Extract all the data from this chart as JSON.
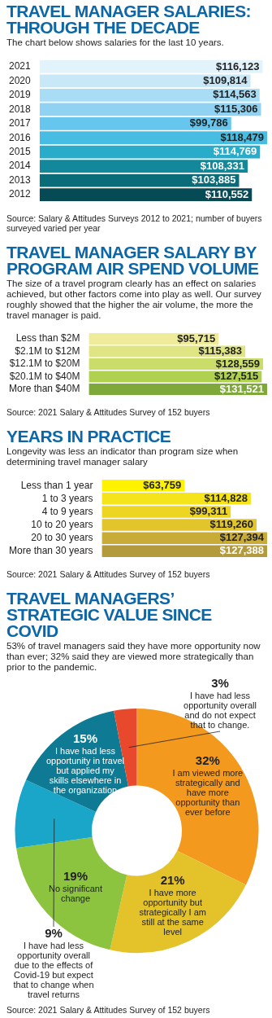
{
  "chart_data": [
    {
      "type": "bar",
      "orientation": "horizontal",
      "tick_labels": "y",
      "title": "TRAVEL MANAGER SALARIES: THROUGH THE DECADE",
      "subtitle": "The chart below shows salaries for the last 10 years.",
      "categories": [
        "2021",
        "2020",
        "2019",
        "2018",
        "2017",
        "2016",
        "2015",
        "2014",
        "2013",
        "2012"
      ],
      "values": [
        116123,
        109814,
        114563,
        115306,
        99786,
        118479,
        114769,
        108331,
        103885,
        110552
      ],
      "value_labels": [
        "$116,123",
        "$109,814",
        "$114,563",
        "$115,306",
        "$99,786",
        "$118,479",
        "$114,769",
        "$108,331",
        "$103,885",
        "$110,552"
      ],
      "colors": [
        "#e2f3fc",
        "#c8e8f8",
        "#a9dcf5",
        "#8fd2f2",
        "#66c6ee",
        "#48bde4",
        "#29acc9",
        "#13889a",
        "#0a6c78",
        "#054a55"
      ],
      "annotations": [
        "Source: Salary & Attitudes Surveys 2012 to 2021; number of buyers surveyed varied per year"
      ]
    },
    {
      "type": "bar",
      "orientation": "horizontal",
      "tick_labels": "y",
      "title": "TRAVEL MANAGER SALARY BY PROGRAM AIR SPEND VOLUME",
      "subtitle": "The size of a travel program clearly has an effect on salaries achieved, but other factors come into play as well. Our survey roughly showed that the higher the air volume, the more the travel manager is paid.",
      "categories": [
        "Less than $2M",
        "$2.1M to $12M",
        "$12.1M to $20M",
        "$20.1M to $40M",
        "More than $40M"
      ],
      "values": [
        95715,
        115383,
        128559,
        127515,
        131521
      ],
      "value_labels": [
        "$95,715",
        "$115,383",
        "$128,559",
        "$127,515",
        "$131,521"
      ],
      "colors": [
        "#eeeb9a",
        "#dfe582",
        "#c9dd68",
        "#afd14f",
        "#7fa83a"
      ],
      "annotations": [
        "Source: 2021 Salary & Attitudes Survey of 152 buyers"
      ]
    },
    {
      "type": "bar",
      "orientation": "horizontal",
      "tick_labels": "y",
      "title": "YEARS IN PRACTICE",
      "subtitle": "Longevity was less an indicator than program size when determining travel manager salary",
      "categories": [
        "Less than 1 year",
        "1 to 3 years",
        "4 to 9 years",
        "10 to 20 years",
        "20 to 30 years",
        "More than 30 years"
      ],
      "values": [
        63759,
        114828,
        99311,
        119260,
        127394,
        127388
      ],
      "value_labels": [
        "$63,759",
        "$114,828",
        "$99,311",
        "$119,260",
        "$127,394",
        "$127,388"
      ],
      "colors": [
        "#fff200",
        "#f5e41a",
        "#ecd523",
        "#e2c52b",
        "#c9ab37",
        "#b39a3c"
      ],
      "annotations": [
        "Source: 2021 Salary & Attitudes Survey of 152 buyers"
      ]
    },
    {
      "type": "donut",
      "title": "TRAVEL MANAGERS’ STRATEGIC VALUE SINCE COVID",
      "subtitle": "53% of travel managers said they have more opportunity now than ever; 32% said they are viewed more strategically than prior to the pandemic.",
      "categories": [
        "I am viewed more strategically and have more opportunity than ever before",
        "I have more opportunity but strategically I am still at the same level",
        "No significant change",
        "I have had less opportunity overall due to the effects of Covid-19 but expect that to change when travel returns",
        "I have had less opportunity in travel but applied my skills elsewhere in the organization",
        "I have had less opportunity overall and do not expect that to change."
      ],
      "values": [
        32,
        21,
        19,
        9,
        15,
        3
      ],
      "value_labels": [
        "32%",
        "21%",
        "19%",
        "9%",
        "15%",
        "3%"
      ],
      "colors": [
        "#f39a1e",
        "#e3c22a",
        "#8cc43f",
        "#1aa6c9",
        "#0f7a93",
        "#e8492c"
      ],
      "annotations": [
        "Source: 2021 Salary & Attitudes Survey of 152 buyers"
      ]
    }
  ]
}
